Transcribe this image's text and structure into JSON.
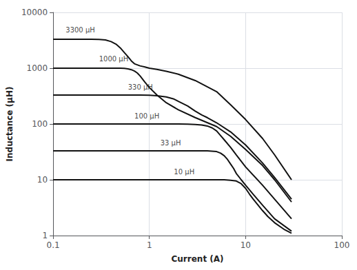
{
  "chart_data": {
    "type": "line",
    "log": true,
    "grid": true,
    "color": "#111111",
    "xlabel": "Current (A)",
    "ylabel": "Inductance (μH)",
    "xlim": [
      0.1,
      100
    ],
    "ylim": [
      1,
      10000
    ],
    "xticks": [
      0.1,
      1,
      10,
      100
    ],
    "yticks": [
      1,
      10,
      100,
      1000,
      10000
    ],
    "series": [
      {
        "x": [
          0.1,
          0.18,
          0.25,
          0.3,
          0.35,
          0.4,
          0.45,
          0.5,
          0.55,
          0.6,
          0.65,
          0.7,
          0.8,
          0.9,
          1.0,
          1.2,
          1.5,
          2.0,
          3.0,
          5.0,
          7.0,
          10.0,
          15.0,
          20.0,
          30.0
        ],
        "values": [
          3300,
          3300,
          3300,
          3280,
          3200,
          3000,
          2700,
          2300,
          1900,
          1600,
          1350,
          1200,
          1100,
          1050,
          1000,
          950,
          880,
          780,
          600,
          380,
          220,
          120,
          55,
          28,
          10
        ]
      },
      {
        "x": [
          0.1,
          0.3,
          0.5,
          0.55,
          0.6,
          0.65,
          0.7,
          0.75,
          0.8,
          0.9,
          1.0,
          1.2,
          1.5,
          2.0,
          3.0,
          5.0,
          7.0,
          10.0,
          15.0,
          20.0,
          30.0
        ],
        "values": [
          1000,
          1000,
          1000,
          990,
          970,
          940,
          890,
          820,
          730,
          560,
          450,
          330,
          240,
          180,
          130,
          90,
          60,
          35,
          18,
          10,
          4
        ]
      },
      {
        "x": [
          0.1,
          0.5,
          0.8,
          1.0,
          1.2,
          1.5,
          1.8,
          2.0,
          2.5,
          3.0,
          3.5,
          4.0,
          5.0,
          7.0,
          10.0,
          15.0,
          20.0,
          30.0
        ],
        "values": [
          330,
          330,
          330,
          328,
          320,
          305,
          280,
          255,
          210,
          170,
          145,
          130,
          105,
          72,
          42,
          20,
          11,
          4.5
        ]
      },
      {
        "x": [
          0.1,
          1.0,
          2.0,
          2.5,
          3.0,
          3.5,
          4.0,
          4.5,
          5.0,
          5.5,
          6.0,
          7.0,
          8.0,
          10.0,
          15.0,
          20.0,
          30.0
        ],
        "values": [
          100,
          100,
          100,
          99,
          98,
          96,
          92,
          85,
          75,
          62,
          52,
          38,
          28,
          17,
          8,
          4.5,
          2
        ]
      },
      {
        "x": [
          0.1,
          2.0,
          3.0,
          4.0,
          5.0,
          5.5,
          6.0,
          6.5,
          7.0,
          7.5,
          8.0,
          9.0,
          10.0,
          12.0,
          15.0,
          20.0,
          30.0
        ],
        "values": [
          33,
          33,
          33,
          33,
          32,
          30,
          27,
          23,
          19,
          16,
          13,
          10,
          8,
          5.5,
          3.5,
          2,
          1.2
        ]
      },
      {
        "x": [
          0.1,
          4.0,
          5.0,
          6.0,
          7.0,
          8.0,
          9.0,
          10.0,
          11.0,
          12.0,
          13.0,
          15.0,
          17.0,
          20.0,
          25.0,
          30.0
        ],
        "values": [
          10,
          10,
          10,
          10,
          9.8,
          9.5,
          8.5,
          7.0,
          5.5,
          4.5,
          3.8,
          2.8,
          2.2,
          1.7,
          1.3,
          1.1
        ]
      }
    ],
    "annotations": [
      {
        "text": "3300 μH",
        "x": 0.135,
        "y": 4800
      },
      {
        "text": "1000 μH",
        "x": 0.3,
        "y": 1450
      },
      {
        "text": "330 μH",
        "x": 0.6,
        "y": 460
      },
      {
        "text": "100 μH",
        "x": 0.7,
        "y": 140
      },
      {
        "text": "33 μH",
        "x": 1.3,
        "y": 46
      },
      {
        "text": "10 μH",
        "x": 1.8,
        "y": 14
      }
    ]
  }
}
